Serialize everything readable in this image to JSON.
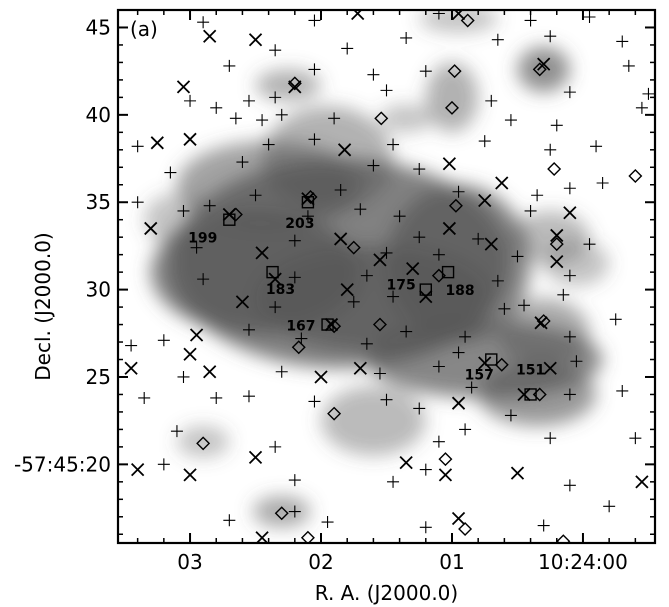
{
  "chart_data": {
    "type": "scatter",
    "panel_label": "(a)",
    "xlabel": "R. A. (J2000.0)",
    "ylabel": "Decl. (J2000.0)",
    "x_unit": "seconds of R.A. after 10:24:00",
    "y_unit": "arcsec offset within -57:45",
    "xlim": [
      3.55,
      -0.55
    ],
    "ylim": [
      46.0,
      15.5
    ],
    "x_ticks": [
      {
        "value": 3,
        "label": "03"
      },
      {
        "value": 2,
        "label": "02"
      },
      {
        "value": 1,
        "label": "01"
      },
      {
        "value": 0,
        "label": "10:24:00"
      }
    ],
    "y_ticks": [
      {
        "value": 20,
        "label": "-57:45:20"
      },
      {
        "value": 25,
        "label": "25"
      },
      {
        "value": 30,
        "label": "30"
      },
      {
        "value": 35,
        "label": "35"
      },
      {
        "value": 40,
        "label": "40"
      },
      {
        "value": 45,
        "label": "45"
      }
    ],
    "grid": false,
    "background": "grayscale smoothed emission map",
    "emission_blobs": [
      {
        "x": 1.85,
        "y": 31.5,
        "rx": 1.3,
        "ry": 6.0,
        "level": 0.75
      },
      {
        "x": 2.5,
        "y": 31.0,
        "rx": 0.8,
        "ry": 3.5,
        "level": 0.75
      },
      {
        "x": 1.6,
        "y": 29.5,
        "rx": 0.9,
        "ry": 3.0,
        "level": 0.7
      },
      {
        "x": 0.95,
        "y": 31.5,
        "rx": 0.55,
        "ry": 4.5,
        "level": 0.7
      },
      {
        "x": 2.4,
        "y": 36.0,
        "rx": 0.7,
        "ry": 2.5,
        "level": 0.55
      },
      {
        "x": 1.95,
        "y": 37.5,
        "rx": 0.5,
        "ry": 3.0,
        "level": 0.45
      },
      {
        "x": 0.75,
        "y": 26.0,
        "rx": 0.9,
        "ry": 2.2,
        "level": 0.7
      },
      {
        "x": 0.35,
        "y": 24.0,
        "rx": 0.45,
        "ry": 1.8,
        "level": 0.6
      },
      {
        "x": 0.3,
        "y": 27.5,
        "rx": 0.35,
        "ry": 2.0,
        "level": 0.5
      },
      {
        "x": 0.25,
        "y": 33.0,
        "rx": 0.3,
        "ry": 1.5,
        "level": 0.4
      },
      {
        "x": 1.0,
        "y": 41.0,
        "rx": 0.2,
        "ry": 2.0,
        "level": 0.45
      },
      {
        "x": 0.3,
        "y": 42.6,
        "rx": 0.2,
        "ry": 1.3,
        "level": 0.65
      },
      {
        "x": 1.6,
        "y": 22.5,
        "rx": 0.4,
        "ry": 2.0,
        "level": 0.4
      },
      {
        "x": 2.3,
        "y": 17.3,
        "rx": 0.22,
        "ry": 0.9,
        "level": 0.5
      },
      {
        "x": 2.9,
        "y": 21.3,
        "rx": 0.2,
        "ry": 0.9,
        "level": 0.35
      },
      {
        "x": 2.25,
        "y": 41.7,
        "rx": 0.25,
        "ry": 0.9,
        "level": 0.45
      },
      {
        "x": 1.35,
        "y": 39.8,
        "rx": 0.2,
        "ry": 0.8,
        "level": 0.35
      },
      {
        "x": 0.95,
        "y": 45.5,
        "rx": 0.3,
        "ry": 0.8,
        "level": 0.35
      },
      {
        "x": 0.05,
        "y": 31.5,
        "rx": 0.25,
        "ry": 1.3,
        "level": 0.35
      },
      {
        "x": 3.1,
        "y": 34.0,
        "rx": 0.25,
        "ry": 1.5,
        "level": 0.35
      }
    ],
    "series": [
      {
        "name": "",
        "marker": "square",
        "points": [
          {
            "x": 0.4,
            "y": 24.0,
            "label": "151"
          },
          {
            "x": 0.7,
            "y": 26.0,
            "label": "157"
          },
          {
            "x": 1.95,
            "y": 28.0,
            "label": "167"
          },
          {
            "x": 1.2,
            "y": 30.0,
            "label": "175"
          },
          {
            "x": 2.37,
            "y": 31.0,
            "label": "183"
          },
          {
            "x": 1.03,
            "y": 31.0,
            "label": "188"
          },
          {
            "x": 2.7,
            "y": 34.0,
            "label": "199"
          },
          {
            "x": 2.1,
            "y": 35.0,
            "label": "203"
          }
        ]
      },
      {
        "name": "",
        "marker": "diamond",
        "points": [
          {
            "x": 2.1,
            "y": 15.8
          },
          {
            "x": 0.9,
            "y": 16.3
          },
          {
            "x": 0.15,
            "y": 15.6
          },
          {
            "x": 2.3,
            "y": 17.2
          },
          {
            "x": 1.05,
            "y": 20.3
          },
          {
            "x": 2.9,
            "y": 21.2
          },
          {
            "x": 1.9,
            "y": 22.9
          },
          {
            "x": 0.33,
            "y": 24.0
          },
          {
            "x": 0.62,
            "y": 25.7
          },
          {
            "x": 2.17,
            "y": 26.7
          },
          {
            "x": 1.9,
            "y": 27.9
          },
          {
            "x": 1.55,
            "y": 28.0
          },
          {
            "x": 0.3,
            "y": 28.2
          },
          {
            "x": 1.1,
            "y": 30.8
          },
          {
            "x": 1.75,
            "y": 32.4
          },
          {
            "x": 0.2,
            "y": 32.6
          },
          {
            "x": 0.97,
            "y": 34.8
          },
          {
            "x": 2.65,
            "y": 34.3
          },
          {
            "x": 2.08,
            "y": 35.3
          },
          {
            "x": 0.22,
            "y": 36.9
          },
          {
            "x": -0.4,
            "y": 36.5
          },
          {
            "x": 1.54,
            "y": 39.8
          },
          {
            "x": 1.0,
            "y": 40.4
          },
          {
            "x": 0.98,
            "y": 42.5
          },
          {
            "x": 2.2,
            "y": 41.8
          },
          {
            "x": 0.88,
            "y": 45.4
          },
          {
            "x": 0.33,
            "y": 42.6
          }
        ]
      },
      {
        "name": "",
        "marker": "x",
        "points": [
          {
            "x": 2.45,
            "y": 15.8
          },
          {
            "x": 0.95,
            "y": 16.9
          },
          {
            "x": 3.4,
            "y": 19.7
          },
          {
            "x": 3.0,
            "y": 19.4
          },
          {
            "x": 2.5,
            "y": 20.4
          },
          {
            "x": 1.35,
            "y": 20.1
          },
          {
            "x": 1.05,
            "y": 19.4
          },
          {
            "x": 0.5,
            "y": 19.5
          },
          {
            "x": -0.45,
            "y": 19.0
          },
          {
            "x": 0.95,
            "y": 23.5
          },
          {
            "x": 0.45,
            "y": 24.0
          },
          {
            "x": 2.0,
            "y": 25.0
          },
          {
            "x": 1.7,
            "y": 25.5
          },
          {
            "x": 2.85,
            "y": 25.3
          },
          {
            "x": 3.45,
            "y": 25.5
          },
          {
            "x": 0.75,
            "y": 25.8
          },
          {
            "x": 0.25,
            "y": 25.5
          },
          {
            "x": 3.0,
            "y": 26.3
          },
          {
            "x": 2.95,
            "y": 27.4
          },
          {
            "x": 1.92,
            "y": 28.0
          },
          {
            "x": 0.32,
            "y": 28.1
          },
          {
            "x": 2.6,
            "y": 29.3
          },
          {
            "x": 1.2,
            "y": 29.6
          },
          {
            "x": 2.35,
            "y": 30.6
          },
          {
            "x": 1.8,
            "y": 30.0
          },
          {
            "x": 1.3,
            "y": 31.2
          },
          {
            "x": 1.55,
            "y": 31.7
          },
          {
            "x": 0.2,
            "y": 31.6
          },
          {
            "x": 2.45,
            "y": 32.1
          },
          {
            "x": 1.85,
            "y": 32.9
          },
          {
            "x": 0.7,
            "y": 32.6
          },
          {
            "x": 0.2,
            "y": 33.1
          },
          {
            "x": 0.1,
            "y": 34.4
          },
          {
            "x": 1.02,
            "y": 33.5
          },
          {
            "x": 3.3,
            "y": 33.5
          },
          {
            "x": 2.7,
            "y": 34.3
          },
          {
            "x": 0.75,
            "y": 35.1
          },
          {
            "x": 0.62,
            "y": 36.1
          },
          {
            "x": 2.1,
            "y": 35.2
          },
          {
            "x": 1.02,
            "y": 37.2
          },
          {
            "x": 3.25,
            "y": 38.4
          },
          {
            "x": 3.0,
            "y": 38.6
          },
          {
            "x": 1.82,
            "y": 38.0
          },
          {
            "x": 3.05,
            "y": 41.6
          },
          {
            "x": 2.2,
            "y": 41.6
          },
          {
            "x": 2.85,
            "y": 44.5
          },
          {
            "x": 2.5,
            "y": 44.3
          },
          {
            "x": 1.72,
            "y": 45.8
          },
          {
            "x": 0.95,
            "y": 45.8
          },
          {
            "x": 0.3,
            "y": 42.9
          }
        ]
      },
      {
        "name": "",
        "marker": "plus",
        "points": [
          {
            "x": 2.7,
            "y": 16.8
          },
          {
            "x": 2.2,
            "y": 17.3
          },
          {
            "x": 1.95,
            "y": 16.7
          },
          {
            "x": 1.2,
            "y": 16.4
          },
          {
            "x": 0.3,
            "y": 16.5
          },
          {
            "x": -0.2,
            "y": 17.6
          },
          {
            "x": 3.2,
            "y": 20.0
          },
          {
            "x": 3.1,
            "y": 21.9
          },
          {
            "x": 2.2,
            "y": 19.1
          },
          {
            "x": 1.45,
            "y": 19.0
          },
          {
            "x": 1.2,
            "y": 19.7
          },
          {
            "x": 0.1,
            "y": 18.8
          },
          {
            "x": -0.4,
            "y": 21.5
          },
          {
            "x": 2.35,
            "y": 21.0
          },
          {
            "x": 1.1,
            "y": 21.3
          },
          {
            "x": 0.9,
            "y": 22.0
          },
          {
            "x": 0.25,
            "y": 21.5
          },
          {
            "x": 0.55,
            "y": 22.8
          },
          {
            "x": 3.35,
            "y": 23.8
          },
          {
            "x": 2.8,
            "y": 23.8
          },
          {
            "x": 2.55,
            "y": 23.9
          },
          {
            "x": 2.05,
            "y": 23.6
          },
          {
            "x": 1.5,
            "y": 23.7
          },
          {
            "x": 1.25,
            "y": 23.2
          },
          {
            "x": 0.85,
            "y": 24.4
          },
          {
            "x": 0.1,
            "y": 24.0
          },
          {
            "x": -0.3,
            "y": 24.2
          },
          {
            "x": 3.05,
            "y": 25.0
          },
          {
            "x": 2.3,
            "y": 25.3
          },
          {
            "x": 1.55,
            "y": 25.2
          },
          {
            "x": 1.1,
            "y": 25.6
          },
          {
            "x": 0.95,
            "y": 26.4
          },
          {
            "x": 0.05,
            "y": 25.9
          },
          {
            "x": 3.45,
            "y": 26.8
          },
          {
            "x": 3.2,
            "y": 27.1
          },
          {
            "x": 2.55,
            "y": 27.7
          },
          {
            "x": 2.15,
            "y": 27.2
          },
          {
            "x": 1.65,
            "y": 26.9
          },
          {
            "x": 1.35,
            "y": 27.6
          },
          {
            "x": 0.9,
            "y": 27.3
          },
          {
            "x": 0.1,
            "y": 27.3
          },
          {
            "x": -0.25,
            "y": 28.3
          },
          {
            "x": 2.35,
            "y": 29.0
          },
          {
            "x": 1.75,
            "y": 29.3
          },
          {
            "x": 1.45,
            "y": 29.6
          },
          {
            "x": 0.6,
            "y": 28.9
          },
          {
            "x": 0.45,
            "y": 29.1
          },
          {
            "x": 0.15,
            "y": 29.7
          },
          {
            "x": 2.9,
            "y": 30.6
          },
          {
            "x": 2.2,
            "y": 30.7
          },
          {
            "x": 1.65,
            "y": 30.8
          },
          {
            "x": 0.65,
            "y": 30.5
          },
          {
            "x": 0.1,
            "y": 30.8
          },
          {
            "x": 1.5,
            "y": 32.1
          },
          {
            "x": 1.1,
            "y": 32.0
          },
          {
            "x": 0.5,
            "y": 31.9
          },
          {
            "x": -0.05,
            "y": 32.6
          },
          {
            "x": 2.95,
            "y": 32.4
          },
          {
            "x": 2.2,
            "y": 32.8
          },
          {
            "x": 1.25,
            "y": 33.0
          },
          {
            "x": 0.8,
            "y": 32.9
          },
          {
            "x": 3.05,
            "y": 34.5
          },
          {
            "x": 2.85,
            "y": 34.8
          },
          {
            "x": 2.1,
            "y": 34.2
          },
          {
            "x": 1.7,
            "y": 34.6
          },
          {
            "x": 1.4,
            "y": 34.2
          },
          {
            "x": 0.4,
            "y": 34.5
          },
          {
            "x": 3.4,
            "y": 35.0
          },
          {
            "x": 2.5,
            "y": 35.4
          },
          {
            "x": 1.85,
            "y": 35.7
          },
          {
            "x": 0.95,
            "y": 35.6
          },
          {
            "x": 0.35,
            "y": 35.4
          },
          {
            "x": 0.1,
            "y": 35.8
          },
          {
            "x": 3.15,
            "y": 36.7
          },
          {
            "x": 2.6,
            "y": 37.3
          },
          {
            "x": 1.6,
            "y": 37.1
          },
          {
            "x": 1.25,
            "y": 36.9
          },
          {
            "x": -0.15,
            "y": 36.1
          },
          {
            "x": 3.4,
            "y": 38.2
          },
          {
            "x": 2.4,
            "y": 38.3
          },
          {
            "x": 2.05,
            "y": 38.6
          },
          {
            "x": 1.45,
            "y": 38.3
          },
          {
            "x": 0.75,
            "y": 38.5
          },
          {
            "x": 0.25,
            "y": 38.0
          },
          {
            "x": -0.1,
            "y": 38.2
          },
          {
            "x": 2.65,
            "y": 39.8
          },
          {
            "x": 2.45,
            "y": 39.7
          },
          {
            "x": 2.3,
            "y": 40.0
          },
          {
            "x": 1.9,
            "y": 39.8
          },
          {
            "x": 0.55,
            "y": 39.7
          },
          {
            "x": 0.2,
            "y": 39.4
          },
          {
            "x": -0.45,
            "y": 40.4
          },
          {
            "x": 3.0,
            "y": 40.8
          },
          {
            "x": 2.8,
            "y": 40.4
          },
          {
            "x": 2.55,
            "y": 40.8
          },
          {
            "x": 2.35,
            "y": 41.0
          },
          {
            "x": 1.5,
            "y": 41.4
          },
          {
            "x": 0.7,
            "y": 40.8
          },
          {
            "x": 0.1,
            "y": 41.3
          },
          {
            "x": -0.5,
            "y": 41.2
          },
          {
            "x": 2.7,
            "y": 42.8
          },
          {
            "x": 2.05,
            "y": 42.6
          },
          {
            "x": 1.6,
            "y": 42.3
          },
          {
            "x": 1.2,
            "y": 42.5
          },
          {
            "x": -0.35,
            "y": 42.8
          },
          {
            "x": 2.35,
            "y": 43.7
          },
          {
            "x": 1.8,
            "y": 43.8
          },
          {
            "x": 1.35,
            "y": 44.4
          },
          {
            "x": 0.65,
            "y": 44.3
          },
          {
            "x": 0.25,
            "y": 44.5
          },
          {
            "x": 2.9,
            "y": 45.3
          },
          {
            "x": 2.05,
            "y": 45.4
          },
          {
            "x": 1.1,
            "y": 45.8
          },
          {
            "x": 0.4,
            "y": 45.4
          },
          {
            "x": -0.05,
            "y": 45.6
          },
          {
            "x": -0.3,
            "y": 44.2
          }
        ]
      }
    ]
  },
  "colors": {
    "axes": "#000000",
    "background": "#ffffff",
    "emission": "#555555"
  }
}
